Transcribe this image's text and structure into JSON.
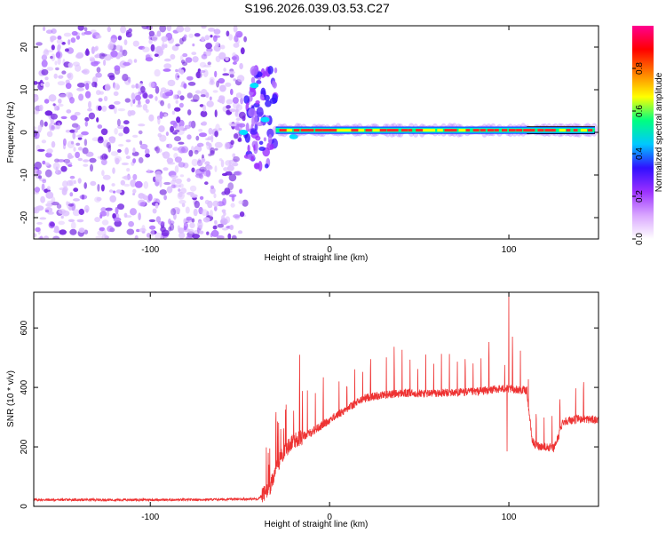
{
  "title": "S196.2026.039.03.53.C27",
  "chart_data": [
    {
      "type": "heatmap",
      "title": "S196.2026.039.03.53.C27",
      "xlabel": "Height of straight line (km)",
      "ylabel": "Frequency (Hz)",
      "xlim": [
        -165,
        150
      ],
      "ylim": [
        -25,
        25
      ],
      "x_ticks": [
        -100,
        0,
        100
      ],
      "y_ticks": [
        -20,
        -10,
        0,
        10,
        20
      ],
      "colorbar": {
        "label": "Normalized spectral amplitude",
        "range": [
          0,
          1
        ],
        "ticks": [
          0.0,
          0.2,
          0.4,
          0.6,
          0.8
        ],
        "tick_labels": [
          "0.0",
          "0.2",
          "0.4",
          "0.6",
          "0.8"
        ],
        "colors": [
          "#ffffff",
          "#d9a6ff",
          "#9b30ff",
          "#3010ff",
          "#00c8ff",
          "#00ff80",
          "#ffff00",
          "#ff7f00",
          "#ff0000",
          "#ff0090"
        ]
      },
      "regions": [
        {
          "name": "noise",
          "x_range": [
            -165,
            -47
          ],
          "f_range": [
            -25,
            25
          ],
          "amplitude": 0.15
        },
        {
          "name": "transition",
          "x_range": [
            -47,
            -30
          ],
          "f_range": [
            -8,
            15
          ],
          "amplitude": 0.25
        },
        {
          "name": "carrier",
          "x_range": [
            -30,
            148
          ],
          "f_center": 0.5,
          "amplitude": 0.8
        }
      ],
      "colors": {
        "noise_light": "#ddc0ff",
        "noise_mid": "#b070ff",
        "noise_dark": "#7020e0",
        "carrier_edge": "#0030ff",
        "carrier_mid": "#00e0ff",
        "carrier_core": "#ff2a2a"
      }
    },
    {
      "type": "line",
      "xlabel": "Height of straight line (km)",
      "ylabel": "SNR (10 * v/v)",
      "xlim": [
        -165,
        150
      ],
      "ylim": [
        0,
        720
      ],
      "x_ticks": [
        -100,
        0,
        100
      ],
      "y_ticks": [
        0,
        200,
        400,
        600
      ],
      "series": [
        {
          "name": "SNR",
          "color": "#ee3333",
          "anchors_x": [
            -165,
            -120,
            -80,
            -40,
            -33,
            -30,
            -25,
            -20,
            -10,
            0,
            10,
            20,
            30,
            40,
            60,
            80,
            95,
            100,
            110,
            113,
            115,
            125,
            128,
            130,
            140,
            150
          ],
          "anchors_y": [
            22,
            22,
            22,
            25,
            60,
            130,
            190,
            220,
            250,
            290,
            330,
            365,
            375,
            380,
            380,
            385,
            395,
            395,
            390,
            220,
            205,
            195,
            240,
            285,
            295,
            290
          ],
          "spike_peak": {
            "x": 100,
            "y": 725
          },
          "spike_dip": {
            "x": 99,
            "y": 185
          }
        }
      ]
    }
  ]
}
